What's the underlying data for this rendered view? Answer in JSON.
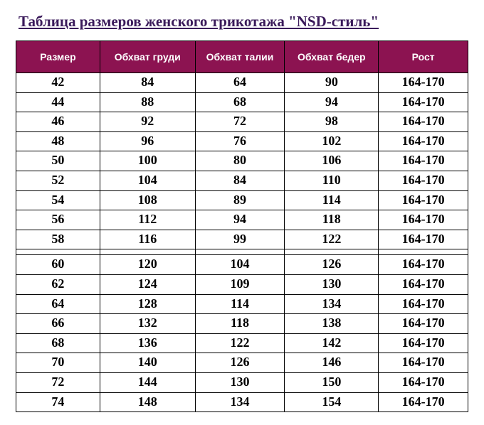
{
  "title": "Таблица размеров женского трикотажа \"NSD-стиль\"",
  "table": {
    "type": "table",
    "header_bg": "#8c1351",
    "header_color": "#ffffff",
    "title_color": "#3a1a5a",
    "border_color": "#000000",
    "columns": [
      "Размер",
      "Обхват груди",
      "Обхват талии",
      "Обхват бедер",
      "Рост"
    ],
    "rows": [
      [
        "42",
        "84",
        "64",
        "90",
        "164-170"
      ],
      [
        "44",
        "88",
        "68",
        "94",
        "164-170"
      ],
      [
        "46",
        "92",
        "72",
        "98",
        "164-170"
      ],
      [
        "48",
        "96",
        "76",
        "102",
        "164-170"
      ],
      [
        "50",
        "100",
        "80",
        "106",
        "164-170"
      ],
      [
        "52",
        "104",
        "84",
        "110",
        "164-170"
      ],
      [
        "54",
        "108",
        "89",
        "114",
        "164-170"
      ],
      [
        "56",
        "112",
        "94",
        "118",
        "164-170"
      ],
      [
        "58",
        "116",
        "99",
        "122",
        "164-170"
      ],
      [
        "60",
        "120",
        "104",
        "126",
        "164-170"
      ],
      [
        "62",
        "124",
        "109",
        "130",
        "164-170"
      ],
      [
        "64",
        "128",
        "114",
        "134",
        "164-170"
      ],
      [
        "66",
        "132",
        "118",
        "138",
        "164-170"
      ],
      [
        "68",
        "136",
        "122",
        "142",
        "164-170"
      ],
      [
        "70",
        "140",
        "126",
        "146",
        "164-170"
      ],
      [
        "72",
        "144",
        "130",
        "150",
        "164-170"
      ],
      [
        "74",
        "148",
        "134",
        "154",
        "164-170"
      ]
    ],
    "gap_after_row_index": 8
  }
}
